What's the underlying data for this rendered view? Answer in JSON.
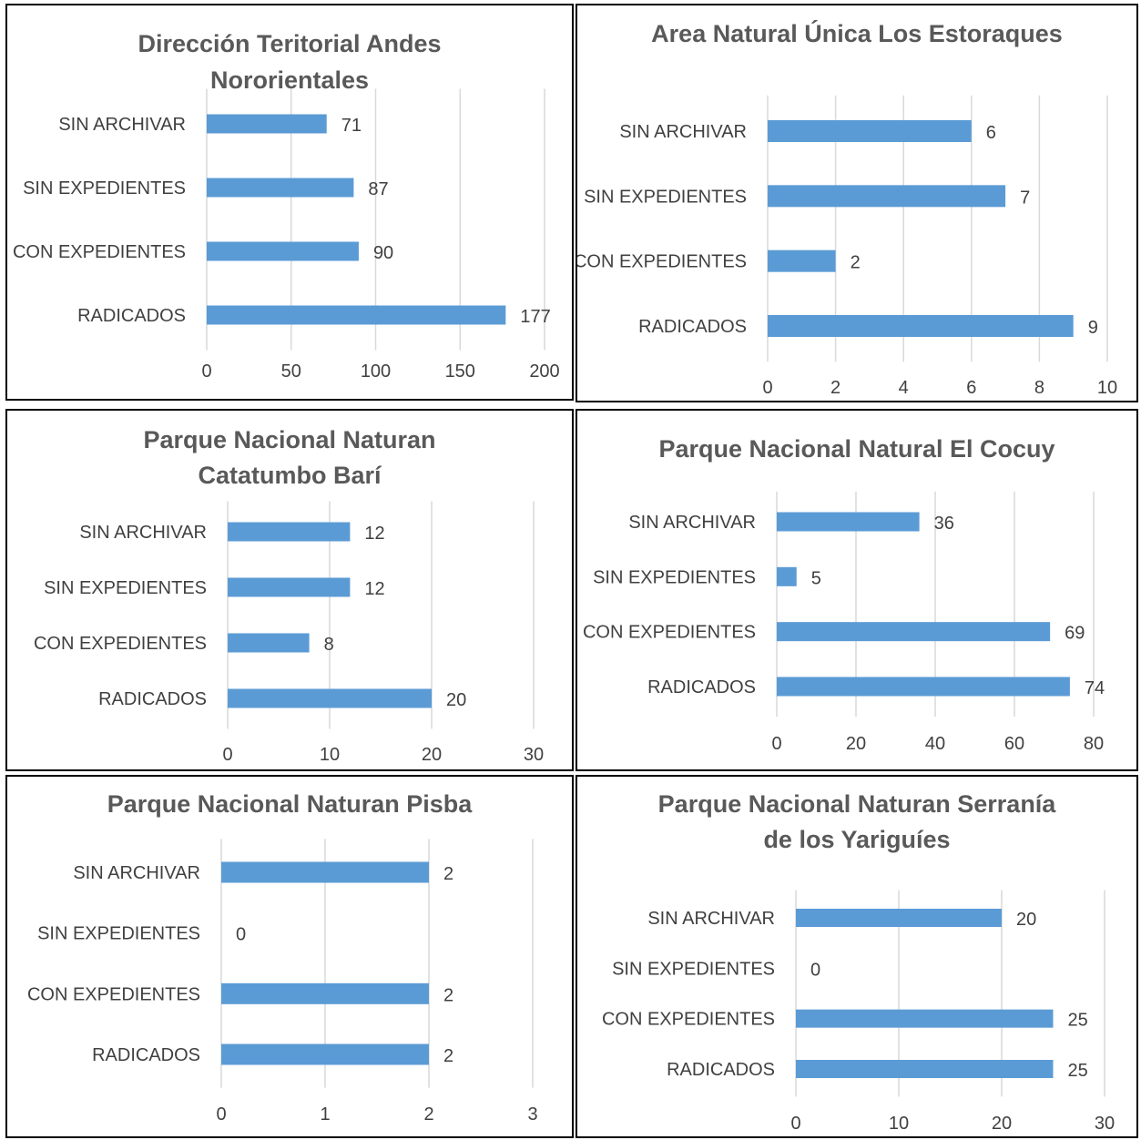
{
  "chart_data": [
    {
      "type": "bar",
      "orientation": "horizontal",
      "title": "Dirección Teritorial Andes Nororientales",
      "categories": [
        "SIN ARCHIVAR",
        "SIN EXPEDIENTES",
        "CON EXPEDIENTES",
        "RADICADOS"
      ],
      "values": [
        71,
        87,
        90,
        177
      ],
      "xlim": [
        0,
        200
      ],
      "ticks": [
        0,
        50,
        100,
        150,
        200
      ],
      "grid": true,
      "color": "#5b9bd5"
    },
    {
      "type": "bar",
      "orientation": "horizontal",
      "title": "Area Natural Única Los Estoraques",
      "categories": [
        "SIN ARCHIVAR",
        "SIN EXPEDIENTES",
        "CON EXPEDIENTES",
        "RADICADOS"
      ],
      "values": [
        6,
        7,
        2,
        9
      ],
      "xlim": [
        0,
        10
      ],
      "ticks": [
        0,
        2,
        4,
        6,
        8,
        10
      ],
      "grid": true,
      "color": "#5b9bd5"
    },
    {
      "type": "bar",
      "orientation": "horizontal",
      "title": "Parque Nacional Naturan Catatumbo Barí",
      "categories": [
        "SIN ARCHIVAR",
        "SIN EXPEDIENTES",
        "CON EXPEDIENTES",
        "RADICADOS"
      ],
      "values": [
        12,
        12,
        8,
        20
      ],
      "xlim": [
        0,
        30
      ],
      "ticks": [
        0,
        10,
        20,
        30
      ],
      "grid": true,
      "color": "#5b9bd5"
    },
    {
      "type": "bar",
      "orientation": "horizontal",
      "title": "Parque Nacional Natural El Cocuy",
      "categories": [
        "SIN ARCHIVAR",
        "SIN EXPEDIENTES",
        "CON EXPEDIENTES",
        "RADICADOS"
      ],
      "values": [
        36,
        5,
        69,
        74
      ],
      "xlim": [
        0,
        80
      ],
      "ticks": [
        0,
        20,
        40,
        60,
        80
      ],
      "grid": true,
      "color": "#5b9bd5"
    },
    {
      "type": "bar",
      "orientation": "horizontal",
      "title": "Parque Nacional Naturan Pisba",
      "categories": [
        "SIN ARCHIVAR",
        "SIN EXPEDIENTES",
        "CON EXPEDIENTES",
        "RADICADOS"
      ],
      "values": [
        2,
        0,
        2,
        2
      ],
      "xlim": [
        0,
        3
      ],
      "ticks": [
        0,
        1,
        2,
        3
      ],
      "grid": true,
      "color": "#5b9bd5"
    },
    {
      "type": "bar",
      "orientation": "horizontal",
      "title": "Parque Nacional Naturan Serranía de los Yariguíes",
      "categories": [
        "SIN ARCHIVAR",
        "SIN EXPEDIENTES",
        "CON EXPEDIENTES",
        "RADICADOS"
      ],
      "values": [
        20,
        0,
        25,
        25
      ],
      "xlim": [
        0,
        30
      ],
      "ticks": [
        0,
        10,
        20,
        30
      ],
      "grid": true,
      "color": "#5b9bd5"
    }
  ]
}
